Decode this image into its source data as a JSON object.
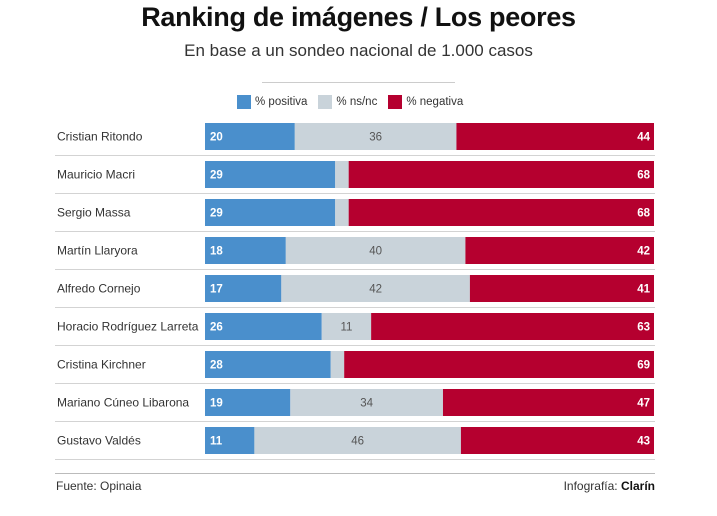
{
  "title": "Ranking de imágenes / Los peores",
  "subtitle": "En base a un sondeo nacional de 1.000 casos",
  "source": "Fuente: Opinaia",
  "credit_label": "Infografía:",
  "credit_brand": "Clarín",
  "colors": {
    "positive": "#4a8fcc",
    "neutral": "#c9d3da",
    "negative": "#b5002f",
    "row_divider": "#d3d3d3"
  },
  "chart_data": {
    "type": "bar",
    "orientation": "horizontal",
    "stacked": true,
    "xlim": [
      0,
      100
    ],
    "legend_position": "top",
    "categories": [
      "Cristian Ritondo",
      "Mauricio Macri",
      "Sergio Massa",
      "Martín Llaryora",
      "Alfredo Cornejo",
      "Horacio Rodríguez Larreta",
      "Cristina Kirchner",
      "Mariano Cúneo Libarona",
      "Gustavo Valdés"
    ],
    "series": [
      {
        "name": "% positiva",
        "values": [
          20,
          29,
          29,
          18,
          17,
          26,
          28,
          19,
          11
        ],
        "labels": [
          "20",
          "29",
          "29",
          "18",
          "17",
          "26",
          "28",
          "19",
          "11"
        ]
      },
      {
        "name": "% ns/nc",
        "values": [
          36,
          3,
          3,
          40,
          42,
          11,
          3,
          34,
          46
        ],
        "labels": [
          "36",
          "",
          "",
          "40",
          "42",
          "11",
          "",
          "34",
          "46"
        ]
      },
      {
        "name": "% negativa",
        "values": [
          44,
          68,
          68,
          42,
          41,
          63,
          69,
          47,
          43
        ],
        "labels": [
          "44",
          "68",
          "68",
          "42",
          "41",
          "63",
          "69",
          "47",
          "43"
        ]
      }
    ]
  }
}
